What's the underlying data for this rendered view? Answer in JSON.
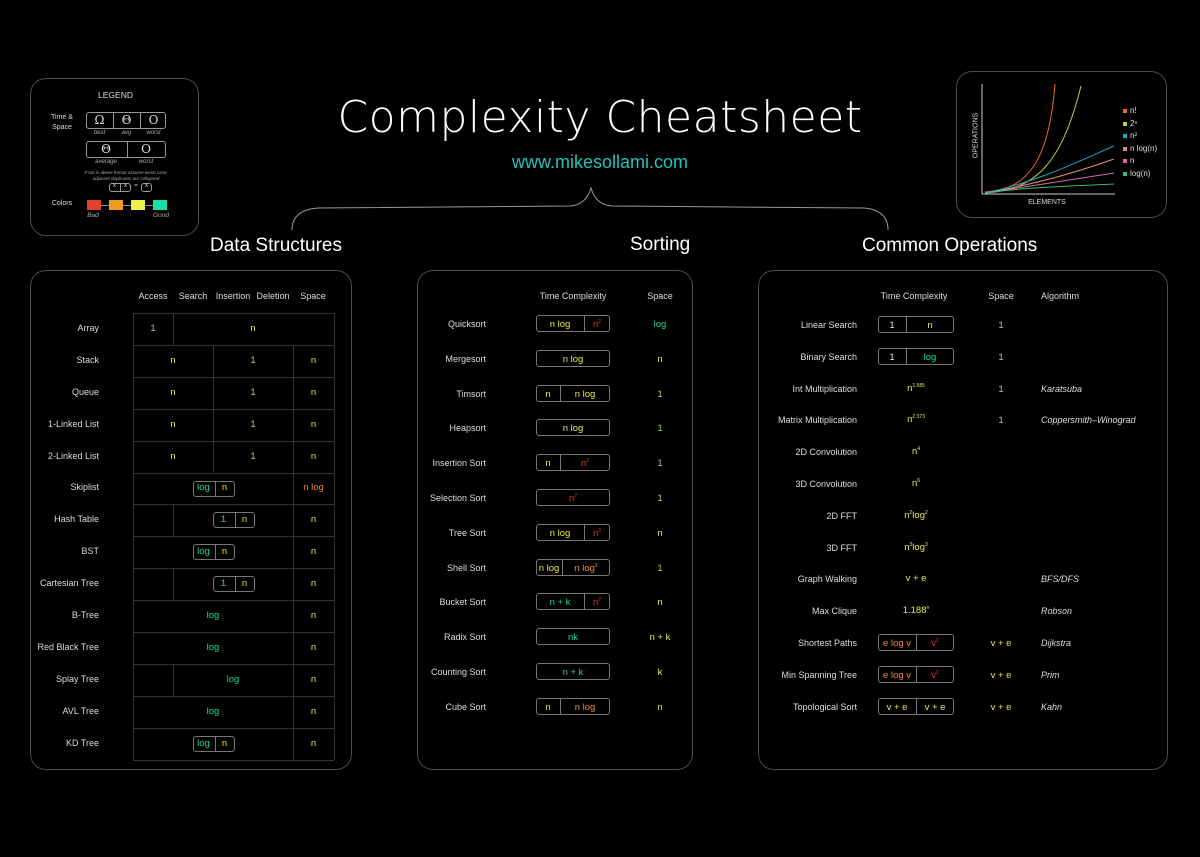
{
  "header": {
    "title": "Complexity Cheatsheet",
    "url": "www.mikesollami.com"
  },
  "legend": {
    "title": "LEGEND",
    "time_space": "Time & Space",
    "row1": [
      {
        "sym": "Ω",
        "label": "best"
      },
      {
        "sym": "Θ",
        "label": "avg"
      },
      {
        "sym": "O",
        "label": "worst"
      }
    ],
    "row2": [
      {
        "sym": "Θ",
        "label": "average"
      },
      {
        "sym": "O",
        "label": "worst"
      }
    ],
    "note1": "If not in above format assume worst case;",
    "note2": "adjacent duplicates are collapsed",
    "dup": [
      "x",
      "x",
      "=",
      "x"
    ],
    "colors_label": "Colors",
    "scale": [
      "#e2422a",
      "#ef9a23",
      "#ecf24d",
      "#19e0a7"
    ],
    "bad": "Bad",
    "good": "Good"
  },
  "graph": {
    "ylabel": "OPERATIONS",
    "xlabel": "ELEMENTS",
    "series": [
      {
        "name": "n!",
        "color": "#ef6a2a"
      },
      {
        "name": "2ⁿ",
        "color": "#bcd23a"
      },
      {
        "name": "n²",
        "color": "#1aa5c4"
      },
      {
        "name": "n log(n)",
        "color": "#e88e66"
      },
      {
        "name": "n",
        "color": "#d66ab1"
      },
      {
        "name": "log(n)",
        "color": "#2fbf73"
      }
    ]
  },
  "sections": {
    "ds": "Data Structures",
    "sort": "Sorting",
    "ops": "Common Operations"
  },
  "ds": {
    "headers": [
      "Access",
      "Search",
      "Insertion",
      "Deletion",
      "Space"
    ],
    "rows": [
      {
        "name": "Array",
        "cells": [
          {
            "t": "1",
            "c": "l"
          },
          {
            "t": "n",
            "c": "y"
          }
        ],
        "space": ""
      },
      {
        "name": "Stack",
        "cells": [
          {
            "t": "n",
            "c": "y"
          },
          {
            "t": "1",
            "c": "l"
          }
        ],
        "space": "n"
      },
      {
        "name": "Queue",
        "cells": [
          {
            "t": "n",
            "c": "y"
          },
          {
            "t": "1",
            "c": "l"
          }
        ],
        "space": "n"
      },
      {
        "name": "1-Linked List",
        "cells": [
          {
            "t": "n",
            "c": "y"
          },
          {
            "t": "1",
            "c": "l"
          }
        ],
        "space": "n"
      },
      {
        "name": "2-Linked List",
        "cells": [
          {
            "t": "n",
            "c": "y"
          },
          {
            "t": "1",
            "c": "l"
          }
        ],
        "space": "n"
      },
      {
        "name": "Skiplist",
        "cells": [
          {
            "t": "log",
            "c": "g"
          },
          {
            "t": "n",
            "c": "y"
          }
        ],
        "space": "n log"
      },
      {
        "name": "Hash Table",
        "cells": [
          {
            "t": "1",
            "c": "g"
          },
          {
            "t": "n",
            "c": "y"
          }
        ],
        "space": "n"
      },
      {
        "name": "BST",
        "cells": [
          {
            "t": "log",
            "c": "g"
          },
          {
            "t": "n",
            "c": "y"
          }
        ],
        "space": "n"
      },
      {
        "name": "Cartesian Tree",
        "cells": [
          {
            "t": "1",
            "c": "g"
          },
          {
            "t": "n",
            "c": "y"
          }
        ],
        "space": "n"
      },
      {
        "name": "B-Tree",
        "cells": [
          {
            "t": "log",
            "c": "g"
          }
        ],
        "space": "n"
      },
      {
        "name": "Red Black Tree",
        "cells": [
          {
            "t": "log",
            "c": "g"
          }
        ],
        "space": "n"
      },
      {
        "name": "Splay Tree",
        "cells": [
          {
            "t": "log",
            "c": "g"
          }
        ],
        "space": "n"
      },
      {
        "name": "AVL Tree",
        "cells": [
          {
            "t": "log",
            "c": "g"
          }
        ],
        "space": "n"
      },
      {
        "name": "KD Tree",
        "cells": [
          {
            "t": "log",
            "c": "g"
          },
          {
            "t": "n",
            "c": "y"
          }
        ],
        "space": "n"
      }
    ]
  },
  "sort": {
    "headers": [
      "Time Complexity",
      "Space"
    ],
    "rows": [
      {
        "name": "Quicksort",
        "cells": [
          {
            "t": "n log",
            "c": "y"
          },
          {
            "t": "n",
            "sup": "2",
            "c": "r"
          }
        ],
        "space": "log",
        "sc": "g"
      },
      {
        "name": "Mergesort",
        "cells": [
          {
            "t": "n log",
            "c": "y"
          }
        ],
        "space": "n",
        "sc": "y"
      },
      {
        "name": "Timsort",
        "cells": [
          {
            "t": "n",
            "c": "y"
          },
          {
            "t": "n log",
            "c": "y"
          }
        ],
        "space": "1",
        "sc": "l"
      },
      {
        "name": "Heapsort",
        "cells": [
          {
            "t": "n log",
            "c": "y"
          }
        ],
        "space": "1",
        "sc": "l"
      },
      {
        "name": "Insertion Sort",
        "cells": [
          {
            "t": "n",
            "c": "y"
          },
          {
            "t": "n",
            "sup": "2",
            "c": "r"
          }
        ],
        "space": "1",
        "sc": "l"
      },
      {
        "name": "Selection Sort",
        "cells": [
          {
            "t": "n",
            "sup": "2",
            "c": "r"
          }
        ],
        "space": "1",
        "sc": "l"
      },
      {
        "name": "Tree Sort",
        "cells": [
          {
            "t": "n log",
            "c": "y"
          },
          {
            "t": "n",
            "sup": "2",
            "c": "r"
          }
        ],
        "space": "n",
        "sc": "y"
      },
      {
        "name": "Shell Sort",
        "cells": [
          {
            "t": "n log",
            "c": "y"
          },
          {
            "t": "n log",
            "sup": "2",
            "c": "o"
          }
        ],
        "space": "1",
        "sc": "l"
      },
      {
        "name": "Bucket Sort",
        "cells": [
          {
            "t": "n + k",
            "c": "g"
          },
          {
            "t": "n",
            "sup": "2",
            "c": "r"
          }
        ],
        "space": "n",
        "sc": "y"
      },
      {
        "name": "Radix Sort",
        "cells": [
          {
            "t": "nk",
            "c": "g"
          }
        ],
        "space": "n + k",
        "sc": "y"
      },
      {
        "name": "Counting Sort",
        "cells": [
          {
            "t": "n + k",
            "c": "g"
          }
        ],
        "space": "k",
        "sc": "y"
      },
      {
        "name": "Cube Sort",
        "cells": [
          {
            "t": "n",
            "c": "y"
          },
          {
            "t": "n log",
            "c": "o"
          }
        ],
        "space": "n",
        "sc": "y"
      }
    ]
  },
  "ops": {
    "headers": [
      "Time Complexity",
      "Space",
      "Algorithm"
    ],
    "rows": [
      {
        "name": "Linear Search",
        "cells": [
          {
            "t": "1",
            "c": "w"
          },
          {
            "t": "n",
            "c": "y"
          }
        ],
        "space": "1",
        "sc": "l",
        "algo": ""
      },
      {
        "name": "Binary Search",
        "cells": [
          {
            "t": "1",
            "c": "w"
          },
          {
            "t": "log",
            "c": "g"
          }
        ],
        "space": "1",
        "sc": "l",
        "algo": ""
      },
      {
        "name": "Int Multiplication",
        "plain": {
          "t": "n",
          "sup": "1.585",
          "c": "y"
        },
        "space": "1",
        "sc": "l",
        "algo": "Karatsuba"
      },
      {
        "name": "Matrix Multiplication",
        "plain": {
          "t": "n",
          "sup": "2.373",
          "c": "y"
        },
        "space": "1",
        "sc": "l",
        "algo": "Coppersmith–Winograd"
      },
      {
        "name": "2D Convolution",
        "plain": {
          "t": "n",
          "sup": "4",
          "c": "y"
        },
        "space": "",
        "sc": "l",
        "algo": ""
      },
      {
        "name": "3D Convolution",
        "plain": {
          "t": "n",
          "sup": "6",
          "c": "y"
        },
        "space": "",
        "sc": "l",
        "algo": ""
      },
      {
        "name": "2D FFT",
        "plain": {
          "t": "n",
          "sup": "2",
          "t2": "log",
          "sup2": "2",
          "c": "y"
        },
        "space": "",
        "sc": "l",
        "algo": ""
      },
      {
        "name": "3D FFT",
        "plain": {
          "t": "n",
          "sup": "3",
          "t2": "log",
          "sup2": "3",
          "c": "y"
        },
        "space": "",
        "sc": "l",
        "algo": ""
      },
      {
        "name": "Graph Walking",
        "plain": {
          "t": "v + e",
          "c": "y"
        },
        "space": "",
        "sc": "l",
        "algo": "BFS/DFS"
      },
      {
        "name": "Max Clique",
        "plain": {
          "t": "1.188",
          "sup": "n",
          "c": "y"
        },
        "space": "",
        "sc": "l",
        "algo": "Robson"
      },
      {
        "name": "Shortest Paths",
        "cells": [
          {
            "t": "e log v",
            "c": "o"
          },
          {
            "t": "v",
            "sup": "2",
            "c": "r"
          }
        ],
        "space": "v + e",
        "sc": "y",
        "algo": "Dijkstra"
      },
      {
        "name": "Min Spanning Tree",
        "cells": [
          {
            "t": "e log v",
            "c": "o"
          },
          {
            "t": "v",
            "sup": "2",
            "c": "r"
          }
        ],
        "space": "v + e",
        "sc": "y",
        "algo": "Prim"
      },
      {
        "name": "Topological Sort",
        "cells": [
          {
            "t": "v + e",
            "c": "y"
          },
          {
            "t": "v + e",
            "c": "y"
          }
        ],
        "space": "v + e",
        "sc": "y",
        "algo": "Kahn"
      }
    ]
  }
}
